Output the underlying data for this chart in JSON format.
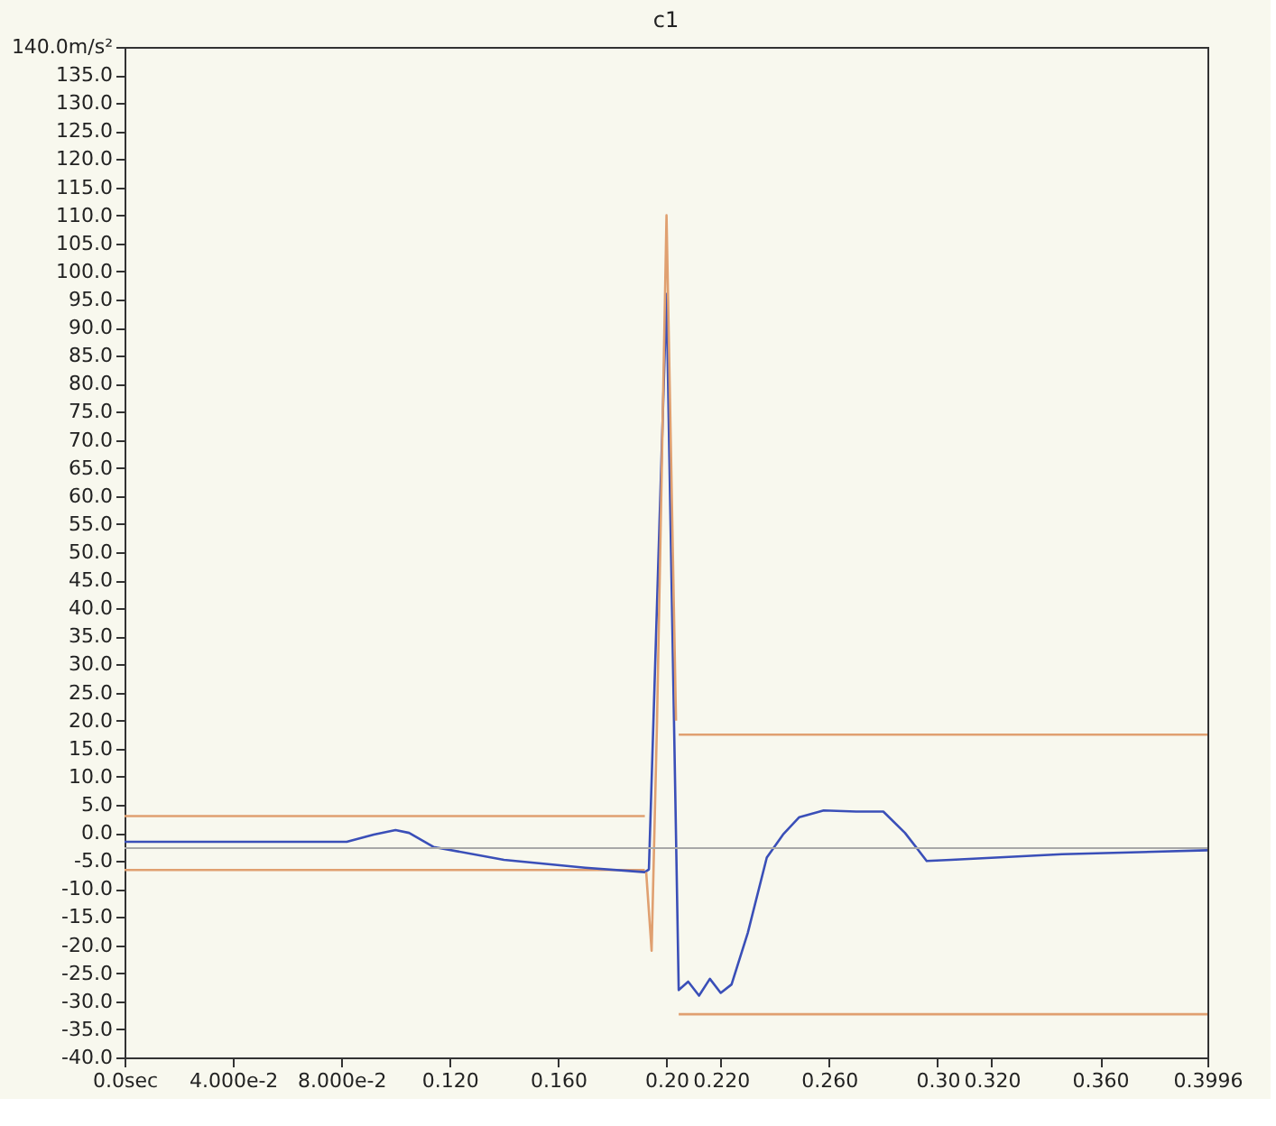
{
  "chart_data": {
    "type": "line",
    "title": "c1",
    "xlim": [
      0,
      0.3996
    ],
    "ylim": [
      -40,
      140
    ],
    "xticks": [
      {
        "value": 0,
        "label": "0.0sec"
      },
      {
        "value": 0.04,
        "label": "4.000e-2"
      },
      {
        "value": 0.08,
        "label": "8.000e-2"
      },
      {
        "value": 0.12,
        "label": "0.120"
      },
      {
        "value": 0.16,
        "label": "0.160"
      },
      {
        "value": 0.2,
        "label": "0.20"
      },
      {
        "value": 0.22,
        "label": "0.220"
      },
      {
        "value": 0.26,
        "label": "0.260"
      },
      {
        "value": 0.3,
        "label": "0.30"
      },
      {
        "value": 0.32,
        "label": "0.320"
      },
      {
        "value": 0.36,
        "label": "0.360"
      },
      {
        "value": 0.3996,
        "label": "0.3996"
      }
    ],
    "yticks": [
      {
        "value": -40,
        "label": "-40.0"
      },
      {
        "value": -35,
        "label": "-35.0"
      },
      {
        "value": -30,
        "label": "-30.0"
      },
      {
        "value": -25,
        "label": "-25.0"
      },
      {
        "value": -20,
        "label": "-20.0"
      },
      {
        "value": -15,
        "label": "-15.0"
      },
      {
        "value": -10,
        "label": "-10.0"
      },
      {
        "value": -5,
        "label": "-5.0"
      },
      {
        "value": 0,
        "label": "0.0"
      },
      {
        "value": 5,
        "label": "5.0"
      },
      {
        "value": 10,
        "label": "10.0"
      },
      {
        "value": 15,
        "label": "15.0"
      },
      {
        "value": 20,
        "label": "20.0"
      },
      {
        "value": 25,
        "label": "25.0"
      },
      {
        "value": 30,
        "label": "30.0"
      },
      {
        "value": 35,
        "label": "35.0"
      },
      {
        "value": 40,
        "label": "40.0"
      },
      {
        "value": 45,
        "label": "45.0"
      },
      {
        "value": 50,
        "label": "50.0"
      },
      {
        "value": 55,
        "label": "55.0"
      },
      {
        "value": 60,
        "label": "60.0"
      },
      {
        "value": 65,
        "label": "65.0"
      },
      {
        "value": 70,
        "label": "70.0"
      },
      {
        "value": 75,
        "label": "75.0"
      },
      {
        "value": 80,
        "label": "80.0"
      },
      {
        "value": 85,
        "label": "85.0"
      },
      {
        "value": 90,
        "label": "90.0"
      },
      {
        "value": 95,
        "label": "95.0"
      },
      {
        "value": 100,
        "label": "100.0"
      },
      {
        "value": 105,
        "label": "105.0"
      },
      {
        "value": 110,
        "label": "110.0"
      },
      {
        "value": 115,
        "label": "115.0"
      },
      {
        "value": 120,
        "label": "120.0"
      },
      {
        "value": 125,
        "label": "125.0"
      },
      {
        "value": 130,
        "label": "130.0"
      },
      {
        "value": 135,
        "label": "135.0"
      },
      {
        "value": 140,
        "label": "140.0m/s²"
      }
    ],
    "grid": false,
    "marker": "none",
    "line_style": "solid",
    "ref_lines": [
      {
        "axis": "y",
        "value": -2.7,
        "color": "#a8a8a8"
      }
    ],
    "series": [
      {
        "color": "#e0a070",
        "x": [
          0,
          0.192,
          0.198,
          0.2045,
          0.3996
        ],
        "values": [
          3,
          3,
          null,
          17.5,
          17.5
        ]
      },
      {
        "color": "#e0a070",
        "x": [
          0,
          0.192,
          0.198,
          0.2045,
          0.3996
        ],
        "values": [
          -6.6,
          -6.6,
          null,
          -32.3,
          -32.3
        ]
      },
      {
        "color": "#3a4fb8",
        "x": [
          0,
          0.082,
          0.092,
          0.1,
          0.105,
          0.114,
          0.14,
          0.17,
          0.192,
          0.1935,
          0.2,
          0.2045,
          0.208,
          0.212,
          0.216,
          0.22,
          0.224,
          0.23,
          0.237,
          0.243,
          0.249,
          0.258,
          0.27,
          0.28,
          0.288,
          0.296,
          0.305,
          0.346,
          0.3996
        ],
        "values": [
          -1.6,
          -1.6,
          -0.3,
          0.5,
          0,
          -2.5,
          -4.8,
          -6.2,
          -7,
          -6.5,
          96,
          -28,
          -26.5,
          -29,
          -26,
          -28.5,
          -27,
          -17.8,
          -4.4,
          -0.3,
          2.8,
          4,
          3.8,
          3.8,
          0,
          -5,
          -4.8,
          -3.8,
          -3.1
        ]
      },
      {
        "color": "#e0a070",
        "x": [
          0.1925,
          0.1945,
          0.1965,
          0.2,
          0.2035
        ],
        "values": [
          -7,
          -21,
          20,
          110,
          20
        ]
      }
    ]
  }
}
